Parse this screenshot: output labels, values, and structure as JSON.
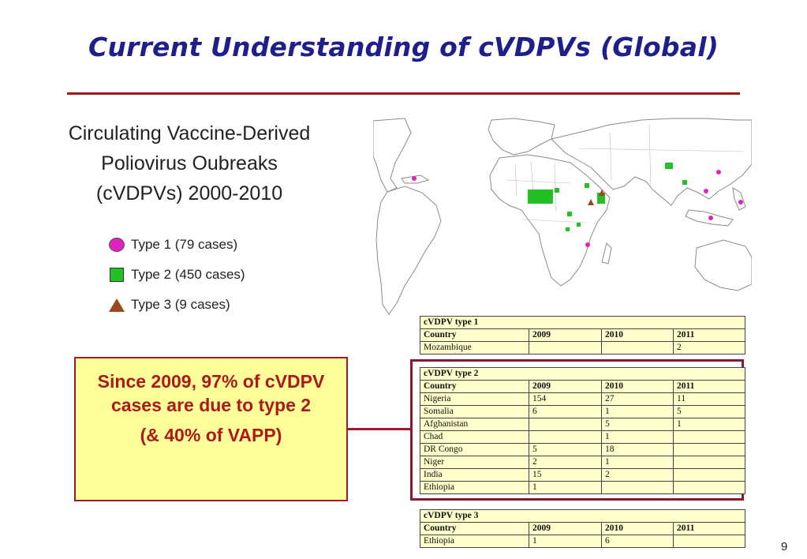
{
  "slide": {
    "title": "Current Understanding of cVDPVs (Global)",
    "subtitle_lines": [
      "Circulating Vaccine-Derived",
      "Poliovirus Oubreaks",
      "(cVDPVs) 2000-2010"
    ],
    "page_number": "9"
  },
  "legend": [
    {
      "label": "Type 1 (79 cases)",
      "symbol": "circle",
      "color": "#e020c0"
    },
    {
      "label": "Type 2 (450 cases)",
      "symbol": "square",
      "color": "#22c022"
    },
    {
      "label": "Type 3 (9 cases)",
      "symbol": "triangle",
      "color": "#9a4a1a"
    }
  ],
  "callout": {
    "line1": "Since 2009, 97% of cVDPV cases are due to type 2",
    "line2": "(& 40% of VAPP)"
  },
  "tables": {
    "type1": {
      "caption": "cVDPV type 1",
      "headers": [
        "Country",
        "2009",
        "2010",
        "2011"
      ],
      "rows": [
        [
          "Mozambique",
          "",
          "",
          "2"
        ]
      ]
    },
    "type2": {
      "caption": "cVDPV type 2",
      "headers": [
        "Country",
        "2009",
        "2010",
        "2011"
      ],
      "rows": [
        [
          "Nigeria",
          "154",
          "27",
          "11"
        ],
        [
          "Somalia",
          "6",
          "1",
          "5"
        ],
        [
          "Afghanistan",
          "",
          "5",
          "1"
        ],
        [
          "Chad",
          "",
          "1",
          ""
        ],
        [
          "DR Congo",
          "5",
          "18",
          ""
        ],
        [
          "Niger",
          "2",
          "1",
          ""
        ],
        [
          "India",
          "15",
          "2",
          ""
        ],
        [
          "Ethiopia",
          "1",
          "",
          ""
        ]
      ]
    },
    "type3": {
      "caption": "cVDPV type 3",
      "headers": [
        "Country",
        "2009",
        "2010",
        "2011"
      ],
      "rows": [
        [
          "Ethiopia",
          "1",
          "6",
          ""
        ]
      ]
    }
  },
  "map": {
    "outline_color": "#8a8a8a",
    "land_color": "#ffffff"
  }
}
